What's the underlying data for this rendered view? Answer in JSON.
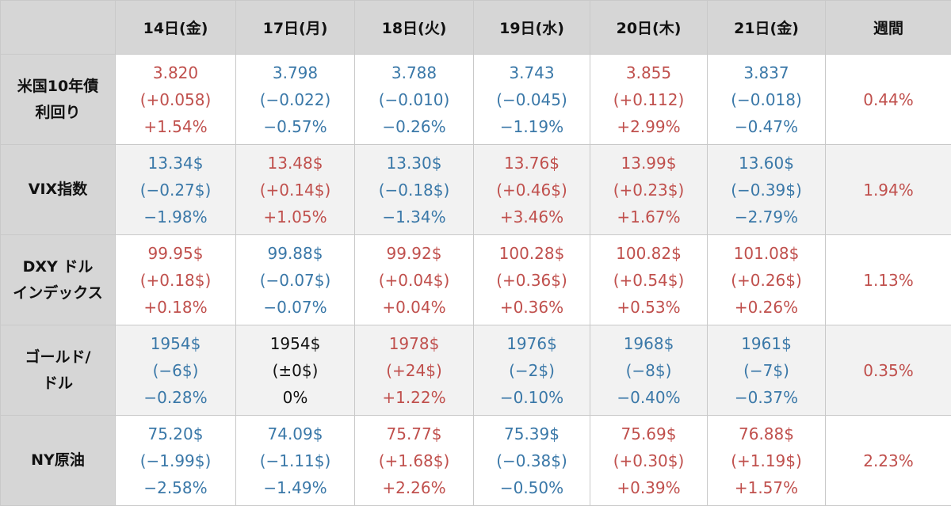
{
  "colors": {
    "up": "#c0504d",
    "down": "#3a78a8",
    "flat": "#111111",
    "header_bg": "#d6d6d6"
  },
  "table": {
    "corner": "",
    "headers": [
      "14日(金)",
      "17日(月)",
      "18日(火)",
      "19日(水)",
      "20日(木)",
      "21日(金)",
      "週間"
    ],
    "rows": [
      {
        "label": "米国10年債\n利回り",
        "cells": [
          {
            "dir": "up",
            "value": "3.820",
            "change": "(+0.058)",
            "pct": "+1.54%"
          },
          {
            "dir": "down",
            "value": "3.798",
            "change": "(−0.022)",
            "pct": "−0.57%"
          },
          {
            "dir": "down",
            "value": "3.788",
            "change": "(−0.010)",
            "pct": "−0.26%"
          },
          {
            "dir": "down",
            "value": "3.743",
            "change": "(−0.045)",
            "pct": "−1.19%"
          },
          {
            "dir": "up",
            "value": "3.855",
            "change": "(+0.112)",
            "pct": "+2.99%"
          },
          {
            "dir": "down",
            "value": "3.837",
            "change": "(−0.018)",
            "pct": "−0.47%"
          }
        ],
        "weekly": "0.44%"
      },
      {
        "label": "VIX指数",
        "cells": [
          {
            "dir": "down",
            "value": "13.34$",
            "change": "(−0.27$)",
            "pct": "−1.98%"
          },
          {
            "dir": "up",
            "value": "13.48$",
            "change": "(+0.14$)",
            "pct": "+1.05%"
          },
          {
            "dir": "down",
            "value": "13.30$",
            "change": "(−0.18$)",
            "pct": "−1.34%"
          },
          {
            "dir": "up",
            "value": "13.76$",
            "change": "(+0.46$)",
            "pct": "+3.46%"
          },
          {
            "dir": "up",
            "value": "13.99$",
            "change": "(+0.23$)",
            "pct": "+1.67%"
          },
          {
            "dir": "down",
            "value": "13.60$",
            "change": "(−0.39$)",
            "pct": "−2.79%"
          }
        ],
        "weekly": "1.94%"
      },
      {
        "label": "DXY ドル\nインデックス",
        "cells": [
          {
            "dir": "up",
            "value": "99.95$",
            "change": "(+0.18$)",
            "pct": "+0.18%"
          },
          {
            "dir": "down",
            "value": "99.88$",
            "change": "(−0.07$)",
            "pct": "−0.07%"
          },
          {
            "dir": "up",
            "value": "99.92$",
            "change": "(+0.04$)",
            "pct": "+0.04%"
          },
          {
            "dir": "up",
            "value": "100.28$",
            "change": "(+0.36$)",
            "pct": "+0.36%"
          },
          {
            "dir": "up",
            "value": "100.82$",
            "change": "(+0.54$)",
            "pct": "+0.53%"
          },
          {
            "dir": "up",
            "value": "101.08$",
            "change": "(+0.26$)",
            "pct": "+0.26%"
          }
        ],
        "weekly": "1.13%"
      },
      {
        "label": "ゴールド/\nドル",
        "cells": [
          {
            "dir": "down",
            "value": "1954$",
            "change": "(−6$)",
            "pct": "−0.28%"
          },
          {
            "dir": "flat",
            "value": "1954$",
            "change": "(±0$)",
            "pct": "0%"
          },
          {
            "dir": "up",
            "value": "1978$",
            "change": "(+24$)",
            "pct": "+1.22%"
          },
          {
            "dir": "down",
            "value": "1976$",
            "change": "(−2$)",
            "pct": "−0.10%"
          },
          {
            "dir": "down",
            "value": "1968$",
            "change": "(−8$)",
            "pct": "−0.40%"
          },
          {
            "dir": "down",
            "value": "1961$",
            "change": "(−7$)",
            "pct": "−0.37%"
          }
        ],
        "weekly": "0.35%"
      },
      {
        "label": "NY原油",
        "cells": [
          {
            "dir": "down",
            "value": "75.20$",
            "change": "(−1.99$)",
            "pct": "−2.58%"
          },
          {
            "dir": "down",
            "value": "74.09$",
            "change": "(−1.11$)",
            "pct": "−1.49%"
          },
          {
            "dir": "up",
            "value": "75.77$",
            "change": "(+1.68$)",
            "pct": "+2.26%"
          },
          {
            "dir": "down",
            "value": "75.39$",
            "change": "(−0.38$)",
            "pct": "−0.50%"
          },
          {
            "dir": "up",
            "value": "75.69$",
            "change": "(+0.30$)",
            "pct": "+0.39%"
          },
          {
            "dir": "up",
            "value": "76.88$",
            "change": "(+1.19$)",
            "pct": "+1.57%"
          }
        ],
        "weekly": "2.23%"
      }
    ]
  }
}
